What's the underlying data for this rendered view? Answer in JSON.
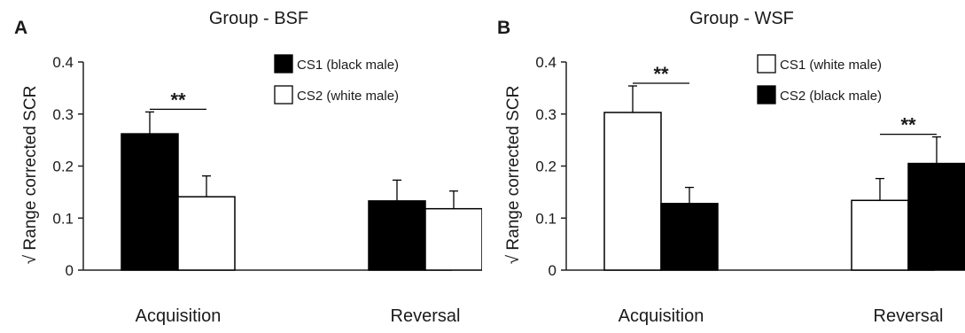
{
  "chart_data": [
    {
      "type": "bar",
      "panel_label": "A",
      "title": "Group - BSF",
      "ylabel": "√ Range corrected SCR",
      "xlabel": "",
      "categories": [
        "Acquisition",
        "Reversal"
      ],
      "ylim": [
        0,
        0.4
      ],
      "yticks": [
        "0",
        "0.1",
        "0.2",
        "0.3",
        "0.4"
      ],
      "grid": false,
      "legend_position": "top-right",
      "series": [
        {
          "name": "CS1 (black male)",
          "fill": "#000000",
          "values": [
            0.262,
            0.133
          ],
          "errors": [
            0.042,
            0.04
          ]
        },
        {
          "name": "CS2 (white male)",
          "fill": "#ffffff",
          "values": [
            0.141,
            0.118
          ],
          "errors": [
            0.04,
            0.034
          ]
        }
      ],
      "annotations": [
        {
          "text": "**",
          "category": "Acquisition"
        }
      ]
    },
    {
      "type": "bar",
      "panel_label": "B",
      "title": "Group - WSF",
      "ylabel": "√ Range corrected SCR",
      "xlabel": "",
      "categories": [
        "Acquisition",
        "Reversal"
      ],
      "ylim": [
        0,
        0.4
      ],
      "yticks": [
        "0",
        "0.1",
        "0.2",
        "0.3",
        "0.4"
      ],
      "grid": false,
      "legend_position": "top-right",
      "series": [
        {
          "name": "CS1 (white male)",
          "fill": "#ffffff",
          "values": [
            0.303,
            0.134
          ],
          "errors": [
            0.051,
            0.042
          ]
        },
        {
          "name": "CS2 (black male)",
          "fill": "#000000",
          "values": [
            0.128,
            0.205
          ],
          "errors": [
            0.031,
            0.051
          ]
        }
      ],
      "annotations": [
        {
          "text": "**",
          "category": "Acquisition"
        },
        {
          "text": "**",
          "category": "Reversal"
        }
      ]
    }
  ]
}
